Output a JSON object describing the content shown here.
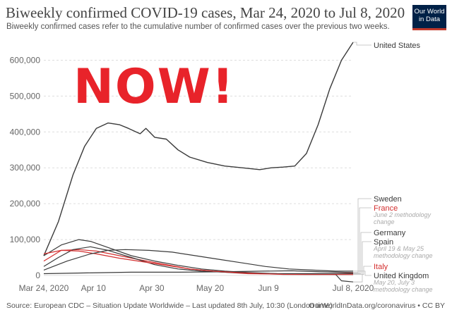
{
  "header": {
    "title": "Biweekly confirmed COVID-19 cases, Mar 24, 2020 to Jul 8, 2020",
    "subtitle": "Biweekly confirmed cases refer to the cumulative number of confirmed cases over the previous two weeks."
  },
  "logo": {
    "line1": "Our World",
    "line2": "in Data"
  },
  "overlay": {
    "text": "NOW!"
  },
  "footer": {
    "source": "Source: European CDC – Situation Update Worldwide – Last updated 8th July, 10:30 (London time)",
    "url": "OurWorldInData.org/coronavirus • CC BY"
  },
  "colors": {
    "line_dark": "#3a3a3a",
    "france": "#d32f2f",
    "italy": "#d32f2f",
    "grid": "#dddddd",
    "note": "#aaaaaa",
    "overlay": "#e8232a"
  },
  "chart_data": {
    "type": "line",
    "title": "Biweekly confirmed COVID-19 cases, Mar 24, 2020 to Jul 8, 2020",
    "ylim": [
      0,
      650000
    ],
    "y_ticks": [
      0,
      100000,
      200000,
      300000,
      400000,
      500000,
      600000
    ],
    "y_tick_labels": [
      "0",
      "100,000",
      "200,000",
      "300,000",
      "400,000",
      "500,000",
      "600,000"
    ],
    "x_range": [
      0,
      106
    ],
    "x_ticks": [
      {
        "day": 0,
        "label": "Mar 24, 2020"
      },
      {
        "day": 17,
        "label": "Apr 10"
      },
      {
        "day": 37,
        "label": "Apr 30"
      },
      {
        "day": 57,
        "label": "May 20"
      },
      {
        "day": 77,
        "label": "Jun 9"
      },
      {
        "day": 106,
        "label": "Jul 8, 2020"
      }
    ],
    "series": [
      {
        "name": "United States",
        "color": "#3a3a3a",
        "x": [
          0,
          5,
          10,
          14,
          18,
          22,
          26,
          29,
          33,
          35,
          38,
          42,
          46,
          50,
          56,
          62,
          68,
          74,
          78,
          82,
          86,
          90,
          94,
          98,
          102,
          106
        ],
        "y": [
          55000,
          150000,
          280000,
          360000,
          410000,
          425000,
          420000,
          410000,
          395000,
          410000,
          385000,
          380000,
          350000,
          330000,
          315000,
          305000,
          300000,
          295000,
          300000,
          302000,
          305000,
          340000,
          420000,
          520000,
          600000,
          650000
        ]
      },
      {
        "name": "Sweden",
        "color": "#3a3a3a",
        "x": [
          0,
          15,
          30,
          45,
          60,
          75,
          85,
          95,
          106
        ],
        "y": [
          5000,
          7000,
          9000,
          9000,
          10000,
          12000,
          13000,
          10000,
          8000
        ]
      },
      {
        "name": "France",
        "color": "#d32f2f",
        "x": [
          0,
          6,
          12,
          18,
          26,
          34,
          42,
          50,
          60,
          70,
          80,
          90,
          100,
          106
        ],
        "y": [
          40000,
          70000,
          72000,
          68000,
          55000,
          42000,
          30000,
          18000,
          10000,
          5000,
          4000,
          4000,
          5000,
          6000
        ]
      },
      {
        "name": "Germany",
        "color": "#3a3a3a",
        "x": [
          0,
          5,
          10,
          16,
          22,
          30,
          38,
          46,
          54,
          62,
          70,
          80,
          90,
          100,
          106
        ],
        "y": [
          25000,
          50000,
          72000,
          80000,
          70000,
          50000,
          30000,
          18000,
          12000,
          9000,
          6000,
          5000,
          5000,
          5000,
          5000
        ]
      },
      {
        "name": "Spain",
        "color": "#3a3a3a",
        "x": [
          0,
          6,
          12,
          16,
          22,
          30,
          38,
          46,
          54,
          62,
          70,
          80,
          90,
          100,
          102,
          106
        ],
        "y": [
          55000,
          85000,
          100000,
          95000,
          78000,
          55000,
          40000,
          28000,
          18000,
          12000,
          8000,
          5000,
          4000,
          3000,
          -15000,
          -18000
        ]
      },
      {
        "name": "Italy",
        "color": "#d32f2f",
        "x": [
          0,
          6,
          12,
          18,
          26,
          34,
          42,
          50,
          58,
          66,
          74,
          82,
          90,
          100,
          106
        ],
        "y": [
          60000,
          70000,
          68000,
          60000,
          48000,
          38000,
          28000,
          18000,
          12000,
          8000,
          5000,
          3000,
          2500,
          2500,
          2500
        ]
      },
      {
        "name": "United Kingdom",
        "color": "#3a3a3a",
        "x": [
          0,
          8,
          16,
          22,
          28,
          36,
          44,
          52,
          60,
          68,
          76,
          84,
          92,
          100,
          106
        ],
        "y": [
          15000,
          40000,
          60000,
          70000,
          72000,
          70000,
          65000,
          55000,
          45000,
          35000,
          25000,
          18000,
          15000,
          12000,
          12000
        ]
      }
    ],
    "legend": [
      {
        "label": "United States",
        "series": "United States",
        "color": "#3a3a3a"
      },
      {
        "label": "Sweden",
        "series": "Sweden",
        "color": "#3a3a3a"
      },
      {
        "label": "France",
        "series": "France",
        "color": "#d32f2f"
      },
      {
        "label": "June 2 methodology change",
        "series": "France",
        "color": "#aaaaaa",
        "note": true
      },
      {
        "label": "Germany",
        "series": "Germany",
        "color": "#3a3a3a"
      },
      {
        "label": "Spain",
        "series": "Spain",
        "color": "#3a3a3a"
      },
      {
        "label": "April 19 & May 25 methodology change",
        "series": "Spain",
        "color": "#aaaaaa",
        "note": true
      },
      {
        "label": "Italy",
        "series": "Italy",
        "color": "#d32f2f"
      },
      {
        "label": "United Kingdom",
        "series": "United Kingdom",
        "color": "#3a3a3a"
      },
      {
        "label": "May 20, July 3 methodology change",
        "series": "United Kingdom",
        "color": "#aaaaaa",
        "note": true
      }
    ]
  }
}
